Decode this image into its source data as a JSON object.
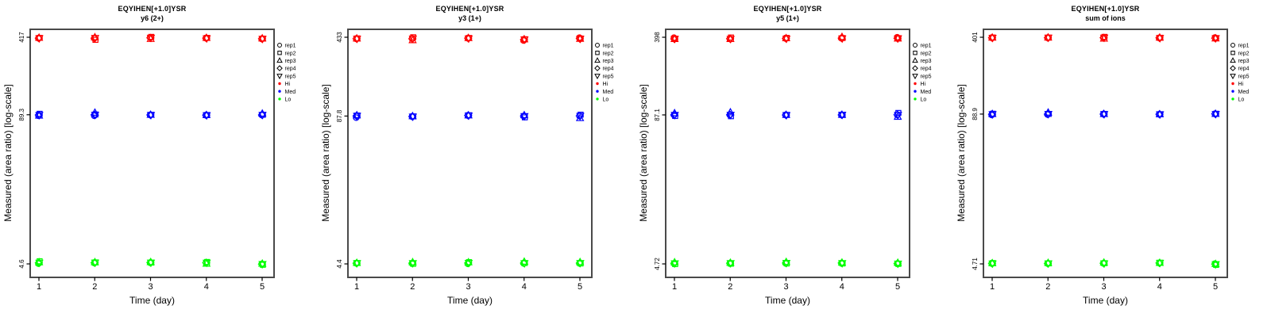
{
  "chart_data": {
    "type": "scatter",
    "yscale": "log",
    "x": [
      1,
      2,
      3,
      4,
      5
    ],
    "xlabel": "Time (day)",
    "ylabel": "Measured (area ratio) [log-scale]",
    "grid": false,
    "legend_position": "right-outside-top",
    "rep_order": [
      "rep1",
      "rep2",
      "rep3",
      "rep4",
      "rep5"
    ],
    "legend": {
      "reps": [
        {
          "label": "rep1",
          "shape": "circle"
        },
        {
          "label": "rep2",
          "shape": "square"
        },
        {
          "label": "rep3",
          "shape": "triangle-up"
        },
        {
          "label": "rep4",
          "shape": "diamond"
        },
        {
          "label": "rep5",
          "shape": "triangle-down"
        }
      ],
      "levels": [
        {
          "label": "Hi",
          "color": "#ff0000"
        },
        {
          "label": "Med",
          "color": "#0000ff"
        },
        {
          "label": "Lo",
          "color": "#00ff00"
        }
      ]
    },
    "colors": {
      "frame": "#4a4a4a",
      "axis": "#000000",
      "text": "#000000"
    },
    "panels": [
      {
        "title": "EQYIHEN[+1.0]YSR",
        "subtitle": "y6 (2+)",
        "yticks": [
          417,
          89.3,
          4.6
        ],
        "series": {
          "Hi": [
            [
              408,
              412,
              413,
              410,
              409
            ],
            [
              408,
              396,
              417,
              409,
              411
            ],
            [
              415,
              420,
              403,
              412,
              413
            ],
            [
              409,
              412,
              411,
              410,
              408
            ],
            [
              403,
              406,
              407,
              405,
              404
            ]
          ],
          "Med": [
            [
              87.5,
              91.0,
              87.8,
              89.0,
              88.8
            ],
            [
              87.5,
              89.8,
              93.0,
              89.4,
              89.2
            ],
            [
              88.8,
              89.3,
              89.1,
              89.0,
              88.9
            ],
            [
              88.4,
              88.9,
              88.6,
              88.6,
              88.5
            ],
            [
              88.8,
              89.3,
              91.3,
              89.0,
              89.1
            ]
          ],
          "Lo": [
            [
              4.62,
              4.85,
              4.75,
              4.7,
              4.71
            ],
            [
              4.68,
              4.74,
              4.76,
              4.71,
              4.72
            ],
            [
              4.7,
              4.72,
              4.77,
              4.73,
              4.72
            ],
            [
              4.7,
              4.78,
              4.62,
              4.72,
              4.71
            ],
            [
              4.6,
              4.52,
              4.62,
              4.58,
              4.59
            ]
          ]
        }
      },
      {
        "title": "EQYIHEN[+1.0]YSR",
        "subtitle": "y3 (1+)",
        "yticks": [
          433,
          87.8,
          4.4
        ],
        "series": {
          "Hi": [
            [
              419,
              423,
              422,
              421,
              420
            ],
            [
              421,
              433,
              408,
              420,
              422
            ],
            [
              424,
              427,
              426,
              425,
              423
            ],
            [
              405,
              416,
              415,
              413,
              414
            ],
            [
              430,
              422,
              419,
              421,
              420
            ]
          ],
          "Med": [
            [
              85.0,
              88.8,
              89.2,
              88.0,
              88.2
            ],
            [
              86.8,
              87.2,
              87.5,
              87.0,
              86.9
            ],
            [
              88.7,
              89.3,
              89.0,
              88.9,
              88.8
            ],
            [
              87.8,
              85.5,
              89.3,
              87.9,
              87.7
            ],
            [
              88.0,
              90.3,
              84.2,
              88.2,
              88.1
            ]
          ],
          "Lo": [
            [
              4.45,
              4.48,
              4.49,
              4.46,
              4.47
            ],
            [
              4.44,
              4.41,
              4.55,
              4.46,
              4.47
            ],
            [
              4.4,
              4.56,
              4.54,
              4.48,
              4.49
            ],
            [
              4.44,
              4.48,
              4.6,
              4.47,
              4.46
            ],
            [
              4.45,
              4.44,
              4.56,
              4.47,
              4.48
            ]
          ]
        }
      },
      {
        "title": "EQYIHEN[+1.0]YSR",
        "subtitle": "y5 (1+)",
        "yticks": [
          398,
          87.1,
          4.72
        ],
        "series": {
          "Hi": [
            [
              395,
              387,
              384,
              385,
              386
            ],
            [
              386,
              396,
              384,
              387,
              385
            ],
            [
              388,
              393,
              390,
              389,
              387
            ],
            [
              390,
              392,
              400,
              391,
              389
            ],
            [
              398,
              391,
              388,
              389,
              390
            ]
          ],
          "Med": [
            [
              87.0,
              85.3,
              90.0,
              87.2,
              87.1
            ],
            [
              87.0,
              84.9,
              91.5,
              87.3,
              87.2
            ],
            [
              86.9,
              87.2,
              87.1,
              87.0,
              86.8
            ],
            [
              87.3,
              87.0,
              87.2,
              87.1,
              87.4
            ],
            [
              87.2,
              90.5,
              84.0,
              87.4,
              87.3
            ]
          ],
          "Lo": [
            [
              4.76,
              4.7,
              4.87,
              4.77,
              4.78
            ],
            [
              4.77,
              4.74,
              4.82,
              4.78,
              4.79
            ],
            [
              4.79,
              4.76,
              4.9,
              4.8,
              4.81
            ],
            [
              4.79,
              4.76,
              4.84,
              4.8,
              4.79
            ],
            [
              4.74,
              4.72,
              4.82,
              4.76,
              4.75
            ]
          ]
        }
      },
      {
        "title": "EQYIHEN[+1.0]YSR",
        "subtitle": "sum of ions",
        "yticks": [
          401,
          88.9,
          4.71
        ],
        "series": {
          "Hi": [
            [
              396,
              399,
              398,
              397,
              396
            ],
            [
              396,
              398,
              399,
              397,
              398
            ],
            [
              398,
              404,
              390,
              397,
              398
            ],
            [
              395,
              397,
              398,
              396,
              395
            ],
            [
              399,
              394,
              392,
              393,
              394
            ]
          ],
          "Med": [
            [
              87.3,
              89.5,
              89.0,
              88.7,
              88.6
            ],
            [
              88.0,
              89.2,
              91.5,
              88.9,
              89.0
            ],
            [
              88.7,
              89.2,
              89.0,
              88.9,
              88.8
            ],
            [
              88.4,
              88.7,
              88.5,
              88.6,
              88.5
            ],
            [
              89.1,
              89.5,
              89.2,
              89.3,
              89.0
            ]
          ],
          "Lo": [
            [
              4.74,
              4.79,
              4.77,
              4.76,
              4.75
            ],
            [
              4.74,
              4.76,
              4.8,
              4.75,
              4.76
            ],
            [
              4.76,
              4.78,
              4.83,
              4.77,
              4.76
            ],
            [
              4.78,
              4.82,
              4.8,
              4.79,
              4.81
            ],
            [
              4.74,
              4.62,
              4.7,
              4.68,
              4.69
            ]
          ]
        }
      }
    ]
  }
}
